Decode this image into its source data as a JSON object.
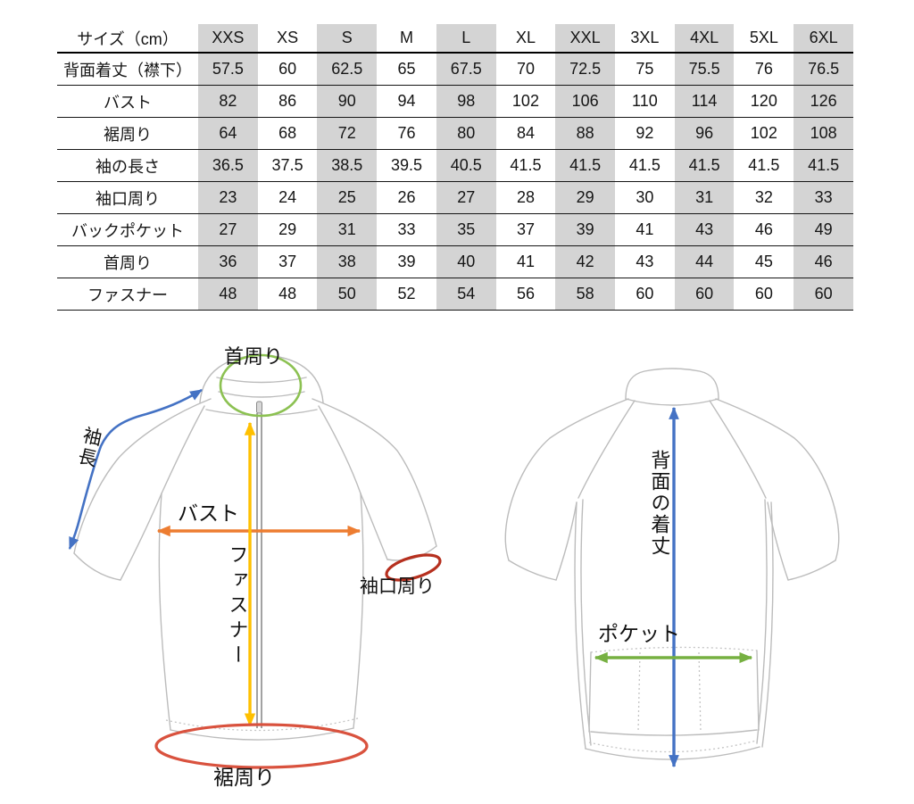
{
  "size_chart": {
    "unit_header": "サイズ（cm）",
    "sizes": [
      "XXS",
      "XS",
      "S",
      "M",
      "L",
      "XL",
      "XXL",
      "3XL",
      "4XL",
      "5XL",
      "6XL"
    ],
    "rows": [
      {
        "label": "背面着丈（襟下）",
        "values": [
          "57.5",
          "60",
          "62.5",
          "65",
          "67.5",
          "70",
          "72.5",
          "75",
          "75.5",
          "76",
          "76.5"
        ]
      },
      {
        "label": "バスト",
        "values": [
          "82",
          "86",
          "90",
          "94",
          "98",
          "102",
          "106",
          "110",
          "114",
          "120",
          "126"
        ]
      },
      {
        "label": "裾周り",
        "values": [
          "64",
          "68",
          "72",
          "76",
          "80",
          "84",
          "88",
          "92",
          "96",
          "102",
          "108"
        ]
      },
      {
        "label": "袖の長さ",
        "values": [
          "36.5",
          "37.5",
          "38.5",
          "39.5",
          "40.5",
          "41.5",
          "41.5",
          "41.5",
          "41.5",
          "41.5",
          "41.5"
        ]
      },
      {
        "label": "袖口周り",
        "values": [
          "23",
          "24",
          "25",
          "26",
          "27",
          "28",
          "29",
          "30",
          "31",
          "32",
          "33"
        ]
      },
      {
        "label": "バックポケット",
        "values": [
          "27",
          "29",
          "31",
          "33",
          "35",
          "37",
          "39",
          "41",
          "43",
          "46",
          "49"
        ]
      },
      {
        "label": "首周り",
        "values": [
          "36",
          "37",
          "38",
          "39",
          "40",
          "41",
          "42",
          "43",
          "44",
          "45",
          "46"
        ]
      },
      {
        "label": "ファスナー",
        "values": [
          "48",
          "48",
          "50",
          "52",
          "54",
          "56",
          "58",
          "60",
          "60",
          "60",
          "60"
        ]
      }
    ],
    "shaded_columns": [
      0,
      2,
      4,
      6,
      8,
      10
    ],
    "shade_color": "#d4d4d4"
  },
  "diagram": {
    "front": {
      "neck_label": "首周り",
      "sleeve_length_label": "袖長",
      "bust_label": "バスト",
      "zipper_label": "ファスナー",
      "cuff_label": "袖口周り",
      "hem_label": "裾周り"
    },
    "back": {
      "back_length_label": "背面の着丈",
      "pocket_label": "ポケット"
    },
    "colors": {
      "neck_ellipse": "#8cc152",
      "sleeve_length_arrow": "#4472c4",
      "bust_arrow": "#ed7d31",
      "zipper_arrow": "#ffc000",
      "cuff_ellipse": "#b6301f",
      "hem_ellipse": "#d9523e",
      "back_length_arrow": "#4472c4",
      "pocket_arrow": "#76b041",
      "outline": "#bcbcbc"
    }
  }
}
